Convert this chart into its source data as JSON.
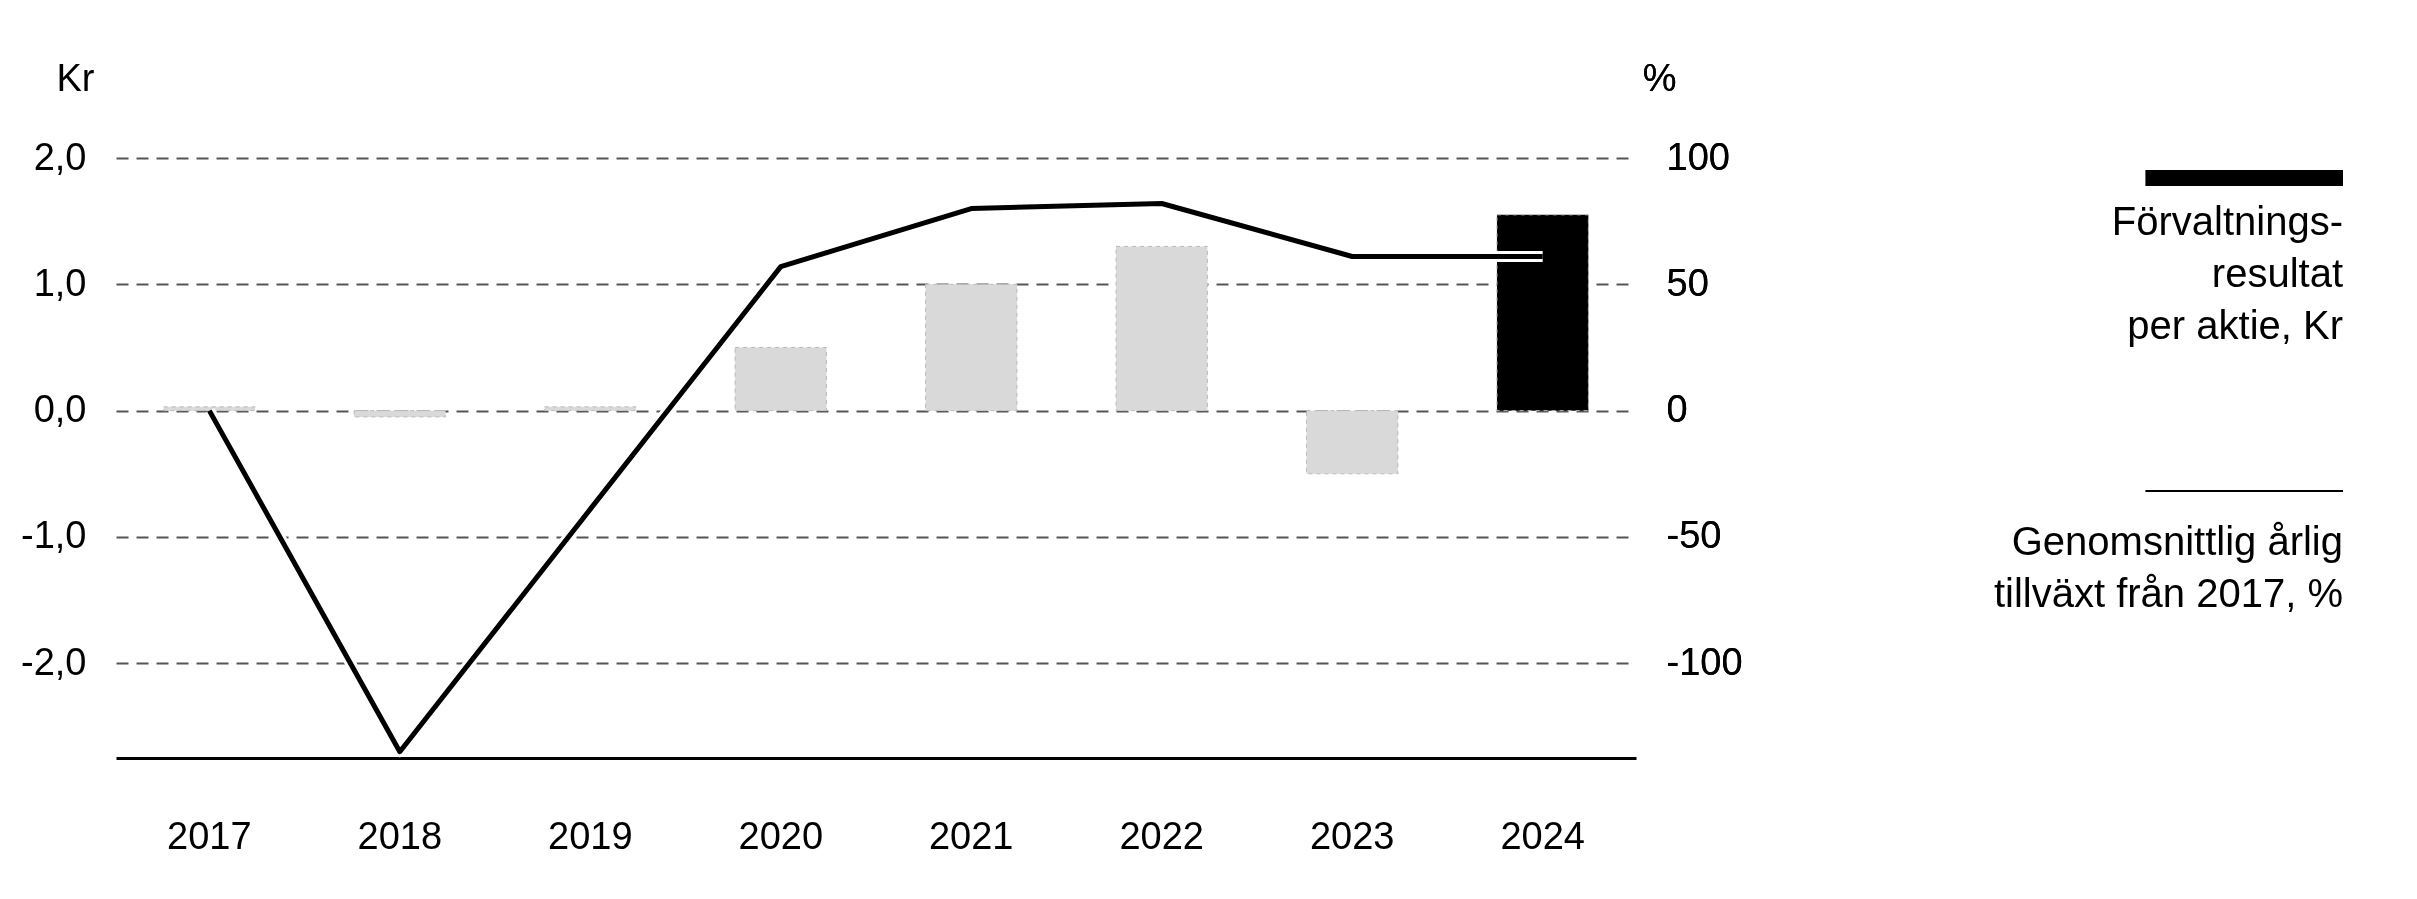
{
  "chart_data": {
    "type": "bar",
    "ylabel": "Kr",
    "y2label": "%",
    "categories": [
      "2017",
      "2018",
      "2019",
      "2020",
      "2021",
      "2022",
      "2023",
      "2024"
    ],
    "series": [
      {
        "name": "Förvaltnings-\nresultat\nper aktie, Kr",
        "colors": [
          "#d9d9d9",
          "#d9d9d9",
          "#d9d9d9",
          "#d9d9d9",
          "#d9d9d9",
          "#d9d9d9",
          "#d9d9d9",
          "#000000"
        ],
        "values": [
          0.03,
          -0.05,
          0.03,
          0.5,
          1.0,
          1.3,
          -0.5,
          1.55
        ]
      },
      {
        "name": "Genomsnittlig årlig\ntillväxt från 2017, %",
        "type": "line",
        "axis": "y2",
        "color": "#000000",
        "values": [
          0,
          -135,
          -39,
          57,
          80,
          82,
          61,
          61
        ]
      }
    ],
    "ylim": [
      -2.75,
      2
    ],
    "yticks": [
      {
        "value": -2,
        "label": "-2,0"
      },
      {
        "value": -1,
        "label": "-1,0"
      },
      {
        "value": 0,
        "label": "0,0"
      },
      {
        "value": 1,
        "label": "1,0"
      },
      {
        "value": 2,
        "label": "2,0"
      }
    ],
    "y2lim": [
      -137.5,
      100
    ],
    "y2ticks": [
      -100,
      -50,
      0,
      50,
      100
    ],
    "grid": "y",
    "legend": "right",
    "marker": "none",
    "line_style": "solid"
  }
}
